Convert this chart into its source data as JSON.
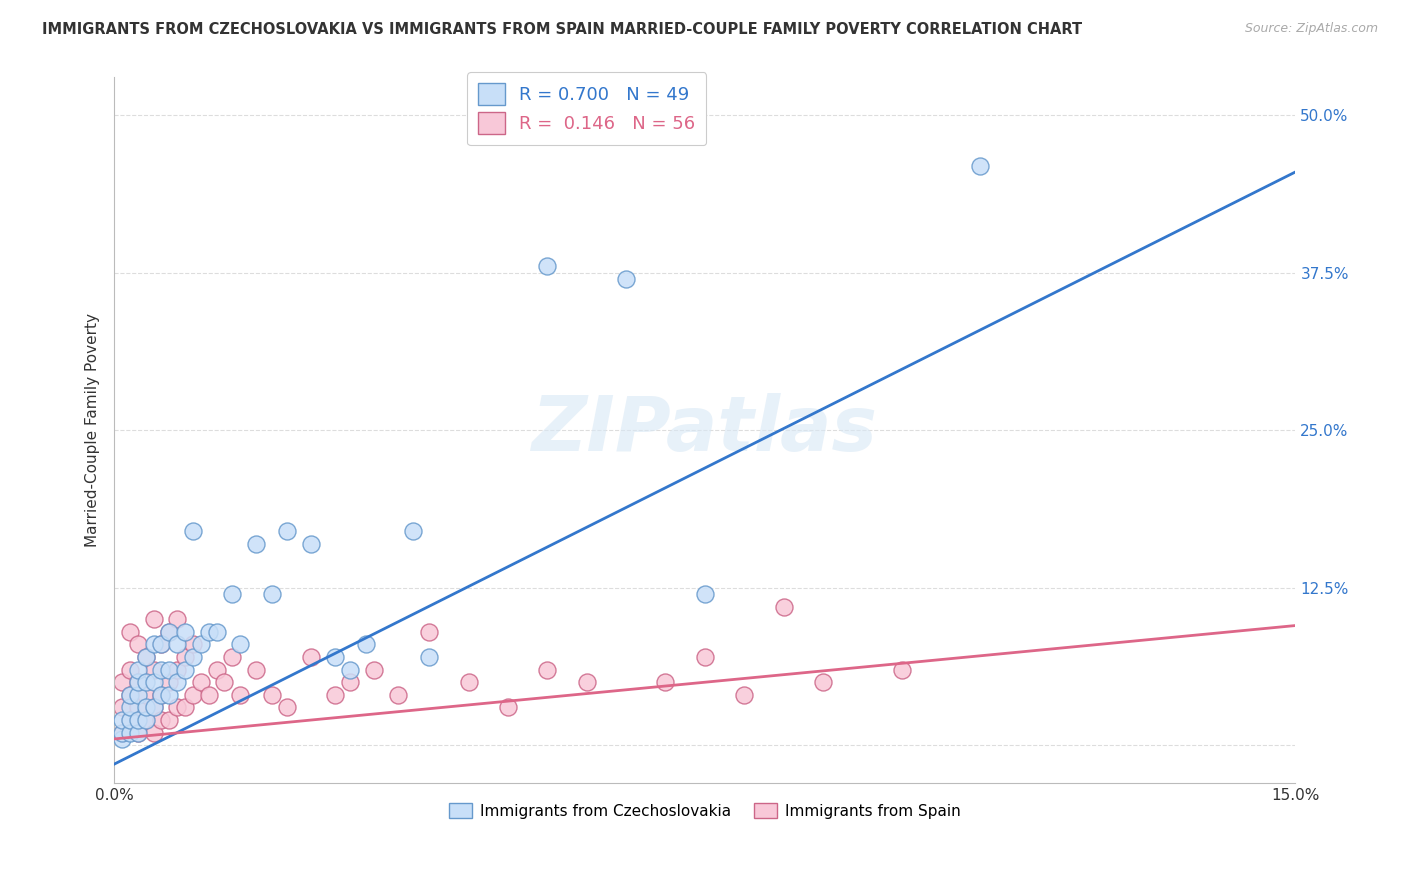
{
  "title": "IMMIGRANTS FROM CZECHOSLOVAKIA VS IMMIGRANTS FROM SPAIN MARRIED-COUPLE FAMILY POVERTY CORRELATION CHART",
  "source": "Source: ZipAtlas.com",
  "ylabel": "Married-Couple Family Poverty",
  "xmin": 0.0,
  "xmax": 0.15,
  "ymin": -0.03,
  "ymax": 0.53,
  "x_ticks": [
    0.0,
    0.15
  ],
  "x_tick_labels": [
    "0.0%",
    "15.0%"
  ],
  "y_ticks": [
    0.0,
    0.125,
    0.25,
    0.375,
    0.5
  ],
  "y_tick_labels": [
    "",
    "12.5%",
    "25.0%",
    "37.5%",
    "50.0%"
  ],
  "legend_czech_label": "Immigrants from Czechoslovakia",
  "legend_spain_label": "Immigrants from Spain",
  "R_czech": 0.7,
  "N_czech": 49,
  "R_spain": 0.146,
  "N_spain": 56,
  "watermark": "ZIPatlas",
  "background_color": "#ffffff",
  "grid_color": "#dddddd",
  "czech_color": "#c8dff8",
  "czech_edge": "#6699cc",
  "spain_color": "#f8c8d8",
  "spain_edge": "#cc6688",
  "czech_line_color": "#3377cc",
  "spain_line_color": "#dd6688",
  "czech_trendline_x0": 0.0,
  "czech_trendline_y0": -0.015,
  "czech_trendline_x1": 0.15,
  "czech_trendline_y1": 0.455,
  "spain_trendline_x0": 0.0,
  "spain_trendline_y0": 0.005,
  "spain_trendline_x1": 0.15,
  "spain_trendline_y1": 0.095,
  "czech_points_x": [
    0.001,
    0.001,
    0.001,
    0.002,
    0.002,
    0.002,
    0.002,
    0.003,
    0.003,
    0.003,
    0.003,
    0.003,
    0.004,
    0.004,
    0.004,
    0.004,
    0.005,
    0.005,
    0.005,
    0.006,
    0.006,
    0.006,
    0.007,
    0.007,
    0.007,
    0.008,
    0.008,
    0.009,
    0.009,
    0.01,
    0.01,
    0.011,
    0.012,
    0.013,
    0.015,
    0.016,
    0.018,
    0.02,
    0.022,
    0.025,
    0.028,
    0.03,
    0.032,
    0.038,
    0.04,
    0.055,
    0.065,
    0.075,
    0.11
  ],
  "czech_points_y": [
    0.005,
    0.01,
    0.02,
    0.01,
    0.02,
    0.03,
    0.04,
    0.01,
    0.02,
    0.04,
    0.05,
    0.06,
    0.02,
    0.03,
    0.05,
    0.07,
    0.03,
    0.05,
    0.08,
    0.04,
    0.06,
    0.08,
    0.04,
    0.06,
    0.09,
    0.05,
    0.08,
    0.06,
    0.09,
    0.07,
    0.17,
    0.08,
    0.09,
    0.09,
    0.12,
    0.08,
    0.16,
    0.12,
    0.17,
    0.16,
    0.07,
    0.06,
    0.08,
    0.17,
    0.07,
    0.38,
    0.37,
    0.12,
    0.46
  ],
  "spain_points_x": [
    0.001,
    0.001,
    0.001,
    0.002,
    0.002,
    0.002,
    0.002,
    0.003,
    0.003,
    0.003,
    0.003,
    0.004,
    0.004,
    0.004,
    0.005,
    0.005,
    0.005,
    0.005,
    0.006,
    0.006,
    0.006,
    0.007,
    0.007,
    0.007,
    0.008,
    0.008,
    0.008,
    0.009,
    0.009,
    0.01,
    0.01,
    0.011,
    0.012,
    0.013,
    0.014,
    0.015,
    0.016,
    0.018,
    0.02,
    0.022,
    0.025,
    0.028,
    0.03,
    0.033,
    0.036,
    0.04,
    0.045,
    0.05,
    0.055,
    0.06,
    0.07,
    0.075,
    0.08,
    0.085,
    0.09,
    0.1
  ],
  "spain_points_y": [
    0.01,
    0.03,
    0.05,
    0.02,
    0.04,
    0.06,
    0.09,
    0.01,
    0.03,
    0.05,
    0.08,
    0.02,
    0.04,
    0.07,
    0.01,
    0.03,
    0.06,
    0.1,
    0.02,
    0.04,
    0.08,
    0.02,
    0.05,
    0.09,
    0.03,
    0.06,
    0.1,
    0.03,
    0.07,
    0.04,
    0.08,
    0.05,
    0.04,
    0.06,
    0.05,
    0.07,
    0.04,
    0.06,
    0.04,
    0.03,
    0.07,
    0.04,
    0.05,
    0.06,
    0.04,
    0.09,
    0.05,
    0.03,
    0.06,
    0.05,
    0.05,
    0.07,
    0.04,
    0.11,
    0.05,
    0.06
  ]
}
